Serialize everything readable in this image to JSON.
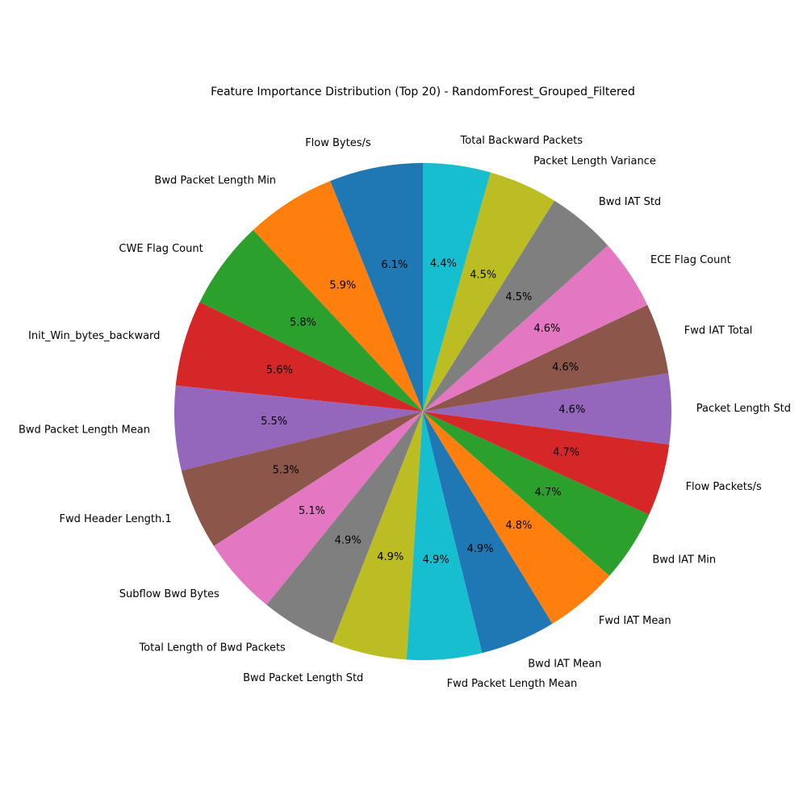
{
  "chart_data": {
    "type": "pie",
    "title": "Feature Importance Distribution (Top 20) - RandomForest_Grouped_Filtered",
    "start_angle_deg": 90,
    "direction": "counterclockwise",
    "slices": [
      {
        "label": "Flow Bytes/s",
        "value": 6.1,
        "pct_label": "6.1%",
        "color": "#1f77b4"
      },
      {
        "label": "Bwd Packet Length Min",
        "value": 5.9,
        "pct_label": "5.9%",
        "color": "#ff7f0e"
      },
      {
        "label": "CWE Flag Count",
        "value": 5.8,
        "pct_label": "5.8%",
        "color": "#2ca02c"
      },
      {
        "label": "Init_Win_bytes_backward",
        "value": 5.6,
        "pct_label": "5.6%",
        "color": "#d62728"
      },
      {
        "label": "Bwd Packet Length Mean",
        "value": 5.5,
        "pct_label": "5.5%",
        "color": "#9467bd"
      },
      {
        "label": "Fwd Header Length.1",
        "value": 5.3,
        "pct_label": "5.3%",
        "color": "#8c564b"
      },
      {
        "label": "Subflow Bwd Bytes",
        "value": 5.1,
        "pct_label": "5.1%",
        "color": "#e377c2"
      },
      {
        "label": "Total Length of Bwd Packets",
        "value": 4.9,
        "pct_label": "4.9%",
        "color": "#7f7f7f"
      },
      {
        "label": "Bwd Packet Length Std",
        "value": 4.9,
        "pct_label": "4.9%",
        "color": "#bcbd22"
      },
      {
        "label": "Fwd Packet Length Mean",
        "value": 4.9,
        "pct_label": "4.9%",
        "color": "#17becf"
      },
      {
        "label": "Bwd IAT Mean",
        "value": 4.9,
        "pct_label": "4.9%",
        "color": "#1f77b4"
      },
      {
        "label": "Fwd IAT Mean",
        "value": 4.8,
        "pct_label": "4.8%",
        "color": "#ff7f0e"
      },
      {
        "label": "Bwd IAT Min",
        "value": 4.7,
        "pct_label": "4.7%",
        "color": "#2ca02c"
      },
      {
        "label": "Flow Packets/s",
        "value": 4.7,
        "pct_label": "4.7%",
        "color": "#d62728"
      },
      {
        "label": "Packet Length Std",
        "value": 4.6,
        "pct_label": "4.6%",
        "color": "#9467bd"
      },
      {
        "label": "Fwd IAT Total",
        "value": 4.6,
        "pct_label": "4.6%",
        "color": "#8c564b"
      },
      {
        "label": "ECE Flag Count",
        "value": 4.6,
        "pct_label": "4.6%",
        "color": "#e377c2"
      },
      {
        "label": "Bwd IAT Std",
        "value": 4.5,
        "pct_label": "4.5%",
        "color": "#7f7f7f"
      },
      {
        "label": "Packet Length Variance",
        "value": 4.5,
        "pct_label": "4.5%",
        "color": "#bcbd22"
      },
      {
        "label": "Total Backward Packets",
        "value": 4.4,
        "pct_label": "4.4%",
        "color": "#17becf"
      }
    ]
  }
}
